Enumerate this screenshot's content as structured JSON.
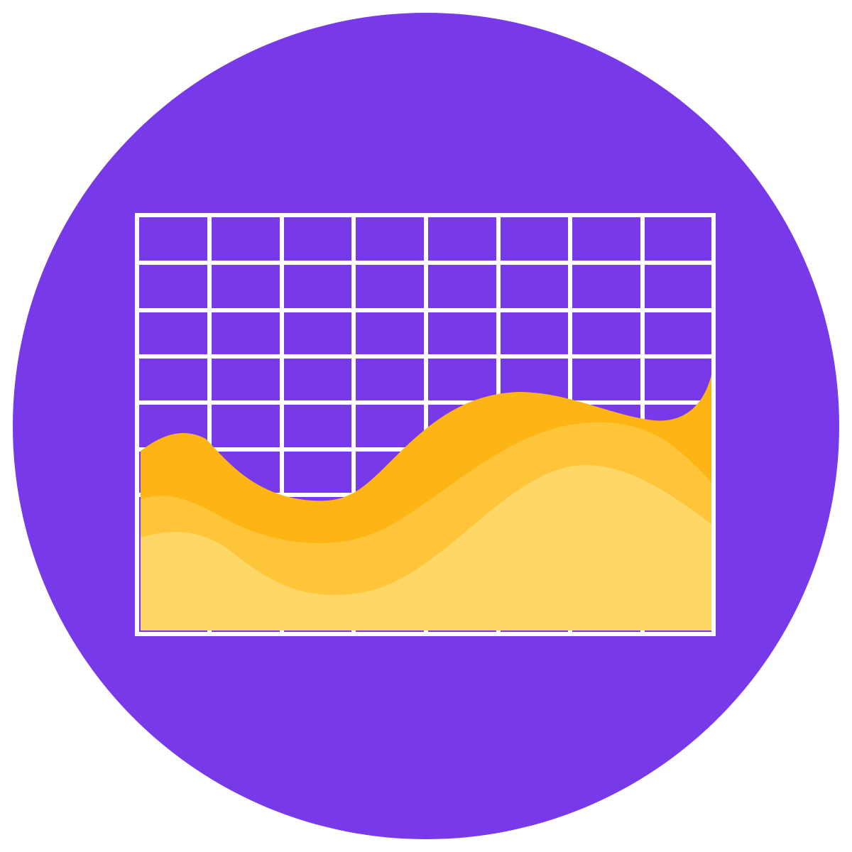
{
  "icon": {
    "name": "stacked-area-chart-icon",
    "colors": {
      "background_circle": "#7839E8",
      "grid": "#FFFFFF",
      "area_top": "#FDB515",
      "area_middle": "#FEC53A",
      "area_bottom": "#FED766"
    }
  }
}
